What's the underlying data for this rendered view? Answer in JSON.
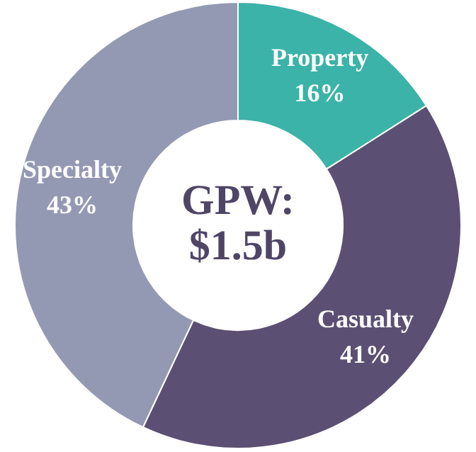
{
  "chart_data": {
    "type": "donut",
    "title": "GPW: $1.5b",
    "categories": [
      "Property",
      "Casualty",
      "Specialty"
    ],
    "values": [
      16,
      41,
      43
    ],
    "colors": [
      "#3bb3a8",
      "#5b5073",
      "#9499b3"
    ],
    "value_labels": [
      "16%",
      "41%",
      "43%"
    ],
    "legend": false
  }
}
